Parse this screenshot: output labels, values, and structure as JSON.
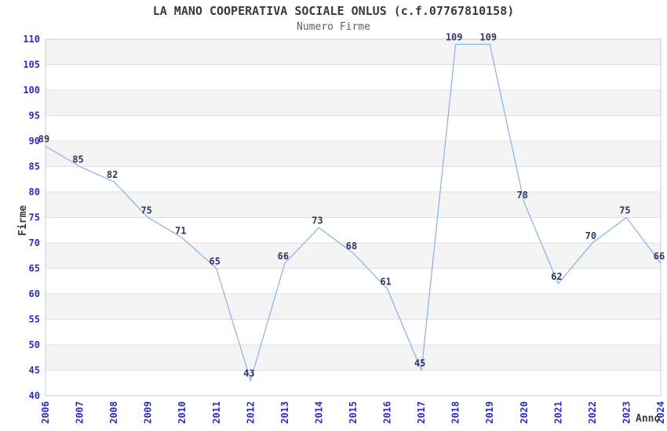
{
  "chart_data": {
    "type": "line",
    "title": "LA MANO COOPERATIVA SOCIALE ONLUS (c.f.07767810158)",
    "subtitle": "Numero Firme",
    "xlabel": "Anno",
    "ylabel": "Firme",
    "categories": [
      "2006",
      "2007",
      "2008",
      "2009",
      "2010",
      "2011",
      "2012",
      "2013",
      "2014",
      "2015",
      "2016",
      "2017",
      "2018",
      "2019",
      "2020",
      "2021",
      "2022",
      "2023",
      "2024"
    ],
    "series": [
      {
        "name": "Numero Firme",
        "values": [
          89,
          85,
          82,
          75,
          71,
          65,
          43,
          66,
          73,
          68,
          61,
          45,
          109,
          109,
          78,
          62,
          70,
          75,
          66
        ]
      }
    ],
    "ylim": [
      40,
      110
    ],
    "ytick_step": 5,
    "grid": true,
    "legend": "none",
    "colors": {
      "band": "#f4f4f4",
      "grid": "#e0e0e0",
      "border": "#cccccc",
      "line": "#85b1e3",
      "tick_label": "#2b2bcc",
      "value_label": "#333366",
      "title": "#3a3a3a",
      "subtitle": "#5f5f5f",
      "background": "#ffffff"
    }
  }
}
